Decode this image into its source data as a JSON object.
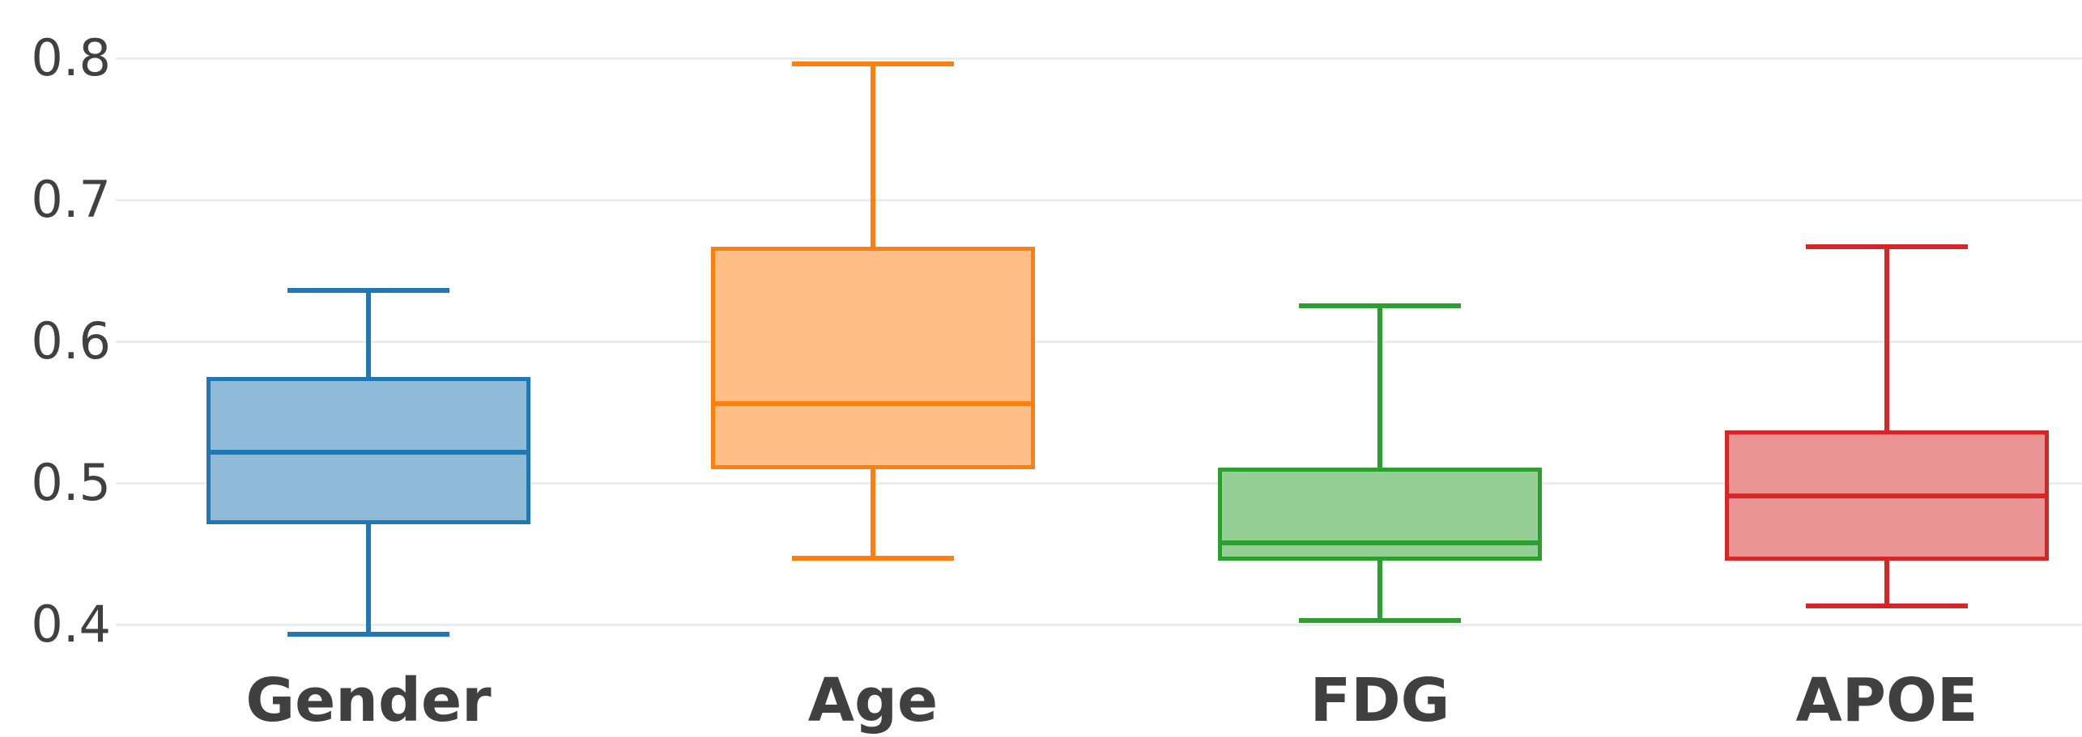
{
  "chart": {
    "background": "#ffffff",
    "grid_color": "#ececec",
    "text_color": "#404040"
  },
  "chart_data": {
    "type": "box",
    "title": "",
    "xlabel": "",
    "ylabel": "",
    "categories": [
      "Gender",
      "Age",
      "FDG",
      "APOE"
    ],
    "series": [
      {
        "name": "Gender",
        "color": "#1f77b4",
        "fill": "#8fbbd9",
        "whisker_low": 0.393,
        "q1": 0.471,
        "median": 0.522,
        "q3": 0.575,
        "whisker_high": 0.636
      },
      {
        "name": "Age",
        "color": "#ff7f0e",
        "fill": "#ffbf86",
        "whisker_low": 0.447,
        "q1": 0.51,
        "median": 0.556,
        "q3": 0.667,
        "whisker_high": 0.796
      },
      {
        "name": "FDG",
        "color": "#2ca02c",
        "fill": "#95cf95",
        "whisker_low": 0.403,
        "q1": 0.445,
        "median": 0.458,
        "q3": 0.511,
        "whisker_high": 0.625
      },
      {
        "name": "APOE",
        "color": "#d62728",
        "fill": "#ea9393",
        "whisker_low": 0.413,
        "q1": 0.445,
        "median": 0.491,
        "q3": 0.537,
        "whisker_high": 0.667
      }
    ],
    "yticks": [
      "0.8",
      "0.7",
      "0.6",
      "0.5",
      "0.4"
    ],
    "ytick_values": [
      0.8,
      0.7,
      0.6,
      0.5,
      0.4
    ],
    "ylim": [
      0.32,
      0.84
    ],
    "grid": "horizontal",
    "legend": "none"
  }
}
